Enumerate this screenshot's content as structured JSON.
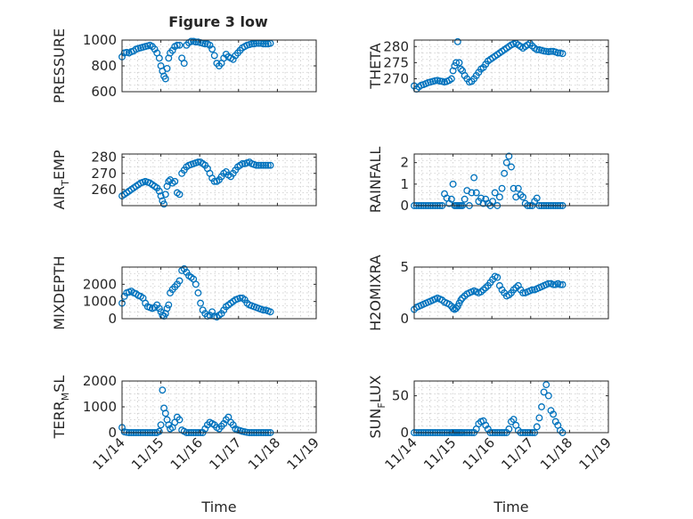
{
  "figure": {
    "title": "Figure 3 low"
  },
  "chart_data": [
    {
      "type": "scatter",
      "ylabel": "PRESSURE",
      "ylim": [
        600,
        1000
      ],
      "yticks": [
        600,
        800,
        1000
      ],
      "xlim": [
        0,
        5
      ],
      "grid": true,
      "color": "#0072BD",
      "x": [
        0.0,
        0.06,
        0.12,
        0.18,
        0.24,
        0.3,
        0.36,
        0.42,
        0.48,
        0.54,
        0.6,
        0.66,
        0.72,
        0.78,
        0.84,
        0.9,
        0.96,
        1.0,
        1.04,
        1.08,
        1.12,
        1.16,
        1.2,
        1.24,
        1.3,
        1.36,
        1.42,
        1.48,
        1.54,
        1.6,
        1.66,
        1.72,
        1.78,
        1.84,
        1.9,
        1.96,
        2.02,
        2.08,
        2.14,
        2.2,
        2.26,
        2.32,
        2.38,
        2.44,
        2.5,
        2.56,
        2.62,
        2.68,
        2.74,
        2.8,
        2.86,
        2.92,
        2.98,
        3.04,
        3.1,
        3.16,
        3.22,
        3.28,
        3.34,
        3.4,
        3.46,
        3.52,
        3.58,
        3.64,
        3.7,
        3.76,
        3.82
      ],
      "y": [
        870,
        900,
        905,
        900,
        910,
        915,
        930,
        935,
        940,
        945,
        950,
        955,
        960,
        950,
        930,
        900,
        860,
        800,
        760,
        720,
        700,
        780,
        860,
        900,
        920,
        950,
        960,
        960,
        860,
        820,
        960,
        980,
        990,
        990,
        985,
        985,
        980,
        975,
        970,
        970,
        960,
        930,
        880,
        820,
        800,
        820,
        860,
        890,
        870,
        860,
        850,
        880,
        900,
        920,
        940,
        950,
        960,
        965,
        970,
        970,
        975,
        975,
        975,
        970,
        970,
        970,
        975
      ]
    },
    {
      "type": "scatter",
      "ylabel": "THETA",
      "ylim": [
        266,
        282
      ],
      "yticks": [
        270,
        275,
        280
      ],
      "xlim": [
        0,
        5
      ],
      "grid": true,
      "color": "#0072BD",
      "x": [
        0.0,
        0.06,
        0.12,
        0.18,
        0.24,
        0.3,
        0.36,
        0.42,
        0.48,
        0.54,
        0.6,
        0.66,
        0.72,
        0.78,
        0.84,
        0.9,
        0.96,
        1.0,
        1.04,
        1.08,
        1.12,
        1.16,
        1.2,
        1.24,
        1.3,
        1.36,
        1.42,
        1.48,
        1.54,
        1.6,
        1.66,
        1.72,
        1.78,
        1.84,
        1.9,
        1.96,
        2.02,
        2.08,
        2.14,
        2.2,
        2.26,
        2.32,
        2.38,
        2.44,
        2.5,
        2.56,
        2.62,
        2.68,
        2.74,
        2.8,
        2.86,
        2.92,
        2.98,
        3.04,
        3.1,
        3.16,
        3.22,
        3.28,
        3.34,
        3.4,
        3.46,
        3.52,
        3.58,
        3.64,
        3.7,
        3.76,
        3.82
      ],
      "y": [
        267.8,
        266.8,
        267.5,
        268.0,
        268.2,
        268.5,
        268.8,
        269.0,
        269.2,
        269.4,
        269.5,
        269.3,
        269.2,
        269.0,
        269.2,
        269.5,
        270.0,
        272.5,
        274.0,
        275.0,
        281.5,
        275.0,
        273.0,
        272.5,
        271.0,
        270.0,
        269.0,
        269.2,
        270.0,
        271.0,
        272.0,
        273.0,
        273.5,
        274.5,
        275.5,
        276.0,
        276.5,
        277.0,
        277.5,
        278.0,
        278.5,
        279.0,
        279.5,
        280.0,
        280.5,
        280.8,
        281.0,
        280.5,
        280.0,
        279.5,
        280.0,
        280.5,
        281.0,
        280.2,
        279.5,
        279.0,
        279.0,
        278.8,
        278.6,
        278.5,
        278.4,
        278.5,
        278.5,
        278.3,
        278.0,
        278.0,
        277.8
      ]
    },
    {
      "type": "scatter",
      "ylabel": "AIR_TEMP",
      "ylim": [
        250,
        282
      ],
      "yticks": [
        260,
        270,
        280
      ],
      "xlim": [
        0,
        5
      ],
      "grid": true,
      "color": "#0072BD",
      "x": [
        0.0,
        0.06,
        0.12,
        0.18,
        0.24,
        0.3,
        0.36,
        0.42,
        0.48,
        0.54,
        0.6,
        0.66,
        0.72,
        0.78,
        0.84,
        0.9,
        0.96,
        1.0,
        1.04,
        1.08,
        1.12,
        1.16,
        1.2,
        1.24,
        1.3,
        1.36,
        1.42,
        1.48,
        1.54,
        1.6,
        1.66,
        1.72,
        1.78,
        1.84,
        1.9,
        1.96,
        2.02,
        2.08,
        2.14,
        2.2,
        2.26,
        2.32,
        2.38,
        2.44,
        2.5,
        2.56,
        2.62,
        2.68,
        2.74,
        2.8,
        2.86,
        2.92,
        2.98,
        3.04,
        3.1,
        3.16,
        3.22,
        3.28,
        3.34,
        3.4,
        3.46,
        3.52,
        3.58,
        3.64,
        3.7,
        3.76,
        3.82
      ],
      "y": [
        256,
        257,
        258,
        259,
        260,
        261,
        262,
        263,
        264,
        264.5,
        265,
        264.5,
        264,
        263,
        262,
        261,
        259,
        256,
        253,
        251,
        257,
        262,
        265,
        266,
        264,
        265,
        258,
        257,
        270,
        272,
        274,
        275,
        275.5,
        276,
        276.5,
        277,
        277,
        276,
        275,
        273,
        270,
        267,
        265,
        265,
        266,
        268,
        270,
        271,
        269,
        268,
        270,
        272,
        274,
        275,
        276,
        276,
        276.5,
        277,
        276,
        275.5,
        275,
        275,
        275,
        275,
        275,
        275,
        275
      ]
    },
    {
      "type": "scatter",
      "ylabel": "RAINFALL",
      "ylim": [
        0,
        2.4
      ],
      "yticks": [
        0,
        1,
        2
      ],
      "xlim": [
        0,
        5
      ],
      "grid": true,
      "color": "#0072BD",
      "x": [
        0.0,
        0.06,
        0.12,
        0.18,
        0.24,
        0.3,
        0.36,
        0.42,
        0.48,
        0.54,
        0.6,
        0.66,
        0.72,
        0.78,
        0.84,
        0.9,
        0.96,
        1.0,
        1.04,
        1.08,
        1.12,
        1.16,
        1.2,
        1.24,
        1.3,
        1.36,
        1.42,
        1.48,
        1.54,
        1.6,
        1.66,
        1.72,
        1.78,
        1.84,
        1.9,
        1.96,
        2.02,
        2.08,
        2.14,
        2.2,
        2.26,
        2.32,
        2.38,
        2.44,
        2.5,
        2.56,
        2.62,
        2.68,
        2.74,
        2.8,
        2.86,
        2.92,
        2.98,
        3.04,
        3.1,
        3.16,
        3.22,
        3.28,
        3.34,
        3.4,
        3.46,
        3.52,
        3.58,
        3.64,
        3.7,
        3.76,
        3.82
      ],
      "y": [
        0,
        0,
        0,
        0,
        0,
        0,
        0,
        0,
        0,
        0,
        0,
        0,
        0,
        0.55,
        0.35,
        0.1,
        0.3,
        1.0,
        0,
        0,
        0,
        0,
        0,
        0,
        0.3,
        0.7,
        0,
        0.6,
        1.3,
        0.6,
        0.2,
        0.35,
        0.1,
        0.3,
        0.1,
        0,
        0.2,
        0.6,
        0,
        0.4,
        0.8,
        1.5,
        2.0,
        2.3,
        1.8,
        0.8,
        0.4,
        0.8,
        0.5,
        0.4,
        0.1,
        0,
        0,
        0,
        0.2,
        0.35,
        0,
        0,
        0,
        0,
        0,
        0,
        0,
        0,
        0,
        0,
        0
      ]
    },
    {
      "type": "scatter",
      "ylabel": "MIXDEPTH",
      "ylim": [
        0,
        3000
      ],
      "yticks": [
        0,
        1000,
        2000
      ],
      "xlim": [
        0,
        5
      ],
      "grid": true,
      "color": "#0072BD",
      "x": [
        0.0,
        0.06,
        0.12,
        0.18,
        0.24,
        0.3,
        0.36,
        0.42,
        0.48,
        0.54,
        0.6,
        0.66,
        0.72,
        0.78,
        0.84,
        0.9,
        0.96,
        1.0,
        1.04,
        1.08,
        1.12,
        1.16,
        1.2,
        1.24,
        1.3,
        1.36,
        1.42,
        1.48,
        1.54,
        1.6,
        1.66,
        1.72,
        1.78,
        1.84,
        1.9,
        1.96,
        2.02,
        2.08,
        2.14,
        2.2,
        2.26,
        2.32,
        2.38,
        2.44,
        2.5,
        2.56,
        2.62,
        2.68,
        2.74,
        2.8,
        2.86,
        2.92,
        2.98,
        3.04,
        3.1,
        3.16,
        3.22,
        3.28,
        3.34,
        3.4,
        3.46,
        3.52,
        3.58,
        3.64,
        3.7,
        3.76,
        3.82
      ],
      "y": [
        900,
        1300,
        1500,
        1550,
        1600,
        1500,
        1450,
        1350,
        1300,
        1200,
        900,
        700,
        650,
        600,
        650,
        800,
        600,
        400,
        200,
        150,
        300,
        600,
        800,
        1500,
        1700,
        1850,
        2000,
        2200,
        2800,
        2900,
        2700,
        2500,
        2400,
        2300,
        2000,
        1500,
        900,
        500,
        300,
        150,
        200,
        400,
        150,
        100,
        200,
        300,
        500,
        700,
        800,
        900,
        1000,
        1100,
        1150,
        1200,
        1200,
        1100,
        900,
        800,
        750,
        700,
        650,
        600,
        550,
        500,
        500,
        450,
        400
      ]
    },
    {
      "type": "scatter",
      "ylabel": "H2OMIXRA",
      "ylim": [
        0,
        5
      ],
      "yticks": [
        0,
        5
      ],
      "xlim": [
        0,
        5
      ],
      "grid": true,
      "color": "#0072BD",
      "x": [
        0.0,
        0.06,
        0.12,
        0.18,
        0.24,
        0.3,
        0.36,
        0.42,
        0.48,
        0.54,
        0.6,
        0.66,
        0.72,
        0.78,
        0.84,
        0.9,
        0.96,
        1.0,
        1.04,
        1.08,
        1.12,
        1.16,
        1.2,
        1.24,
        1.3,
        1.36,
        1.42,
        1.48,
        1.54,
        1.6,
        1.66,
        1.72,
        1.78,
        1.84,
        1.9,
        1.96,
        2.02,
        2.08,
        2.14,
        2.2,
        2.26,
        2.32,
        2.38,
        2.44,
        2.5,
        2.56,
        2.62,
        2.68,
        2.74,
        2.8,
        2.86,
        2.92,
        2.98,
        3.04,
        3.1,
        3.16,
        3.22,
        3.28,
        3.34,
        3.4,
        3.46,
        3.52,
        3.58,
        3.64,
        3.7,
        3.76,
        3.82
      ],
      "y": [
        0.9,
        1.1,
        1.2,
        1.3,
        1.4,
        1.5,
        1.6,
        1.7,
        1.8,
        1.9,
        2.0,
        1.9,
        1.8,
        1.6,
        1.5,
        1.4,
        1.2,
        1.0,
        0.9,
        1.0,
        1.2,
        1.5,
        1.8,
        2.0,
        2.2,
        2.4,
        2.5,
        2.6,
        2.7,
        2.6,
        2.5,
        2.6,
        2.8,
        3.0,
        3.2,
        3.5,
        3.8,
        4.1,
        4.0,
        3.2,
        2.8,
        2.5,
        2.2,
        2.3,
        2.5,
        2.8,
        3.0,
        3.2,
        2.8,
        2.5,
        2.5,
        2.6,
        2.7,
        2.8,
        2.8,
        2.9,
        3.0,
        3.1,
        3.2,
        3.3,
        3.4,
        3.4,
        3.3,
        3.3,
        3.4,
        3.3,
        3.3
      ]
    },
    {
      "type": "scatter",
      "ylabel": "TERR_MSL",
      "ylim": [
        0,
        2000
      ],
      "yticks": [
        0,
        1000,
        2000
      ],
      "xticks": [
        0,
        1,
        2,
        3,
        4,
        5
      ],
      "xticklabels": [
        "11/14",
        "11/15",
        "11/16",
        "11/17",
        "11/18",
        "11/19"
      ],
      "xlim": [
        0,
        5
      ],
      "xlabel": "Time",
      "grid": true,
      "color": "#0072BD",
      "x": [
        0.0,
        0.06,
        0.12,
        0.18,
        0.24,
        0.3,
        0.36,
        0.42,
        0.48,
        0.54,
        0.6,
        0.66,
        0.72,
        0.78,
        0.84,
        0.9,
        0.96,
        1.0,
        1.04,
        1.08,
        1.12,
        1.16,
        1.2,
        1.24,
        1.3,
        1.36,
        1.42,
        1.48,
        1.54,
        1.6,
        1.66,
        1.72,
        1.78,
        1.84,
        1.9,
        1.96,
        2.02,
        2.08,
        2.14,
        2.2,
        2.26,
        2.32,
        2.38,
        2.44,
        2.5,
        2.56,
        2.62,
        2.68,
        2.74,
        2.8,
        2.86,
        2.92,
        2.98,
        3.04,
        3.1,
        3.16,
        3.22,
        3.28,
        3.34,
        3.4,
        3.46,
        3.52,
        3.58,
        3.64,
        3.7,
        3.76,
        3.82
      ],
      "y": [
        200,
        30,
        10,
        0,
        0,
        0,
        0,
        0,
        0,
        0,
        0,
        0,
        0,
        0,
        0,
        0,
        50,
        300,
        1650,
        950,
        750,
        500,
        300,
        150,
        200,
        400,
        600,
        500,
        100,
        50,
        0,
        0,
        0,
        0,
        0,
        0,
        0,
        0,
        150,
        300,
        400,
        350,
        300,
        200,
        150,
        250,
        350,
        500,
        600,
        400,
        300,
        150,
        100,
        80,
        50,
        30,
        10,
        0,
        0,
        0,
        0,
        0,
        0,
        0,
        0,
        0,
        0
      ]
    },
    {
      "type": "scatter",
      "ylabel": "SUN_FLUX",
      "ylim": [
        0,
        70
      ],
      "yticks": [
        0,
        50
      ],
      "xticks": [
        0,
        1,
        2,
        3,
        4,
        5
      ],
      "xticklabels": [
        "11/14",
        "11/15",
        "11/16",
        "11/17",
        "11/18",
        "11/19"
      ],
      "xlim": [
        0,
        5
      ],
      "xlabel": "Time",
      "grid": true,
      "color": "#0072BD",
      "x": [
        0.0,
        0.06,
        0.12,
        0.18,
        0.24,
        0.3,
        0.36,
        0.42,
        0.48,
        0.54,
        0.6,
        0.66,
        0.72,
        0.78,
        0.84,
        0.9,
        0.96,
        1.0,
        1.04,
        1.08,
        1.12,
        1.16,
        1.2,
        1.24,
        1.3,
        1.36,
        1.42,
        1.48,
        1.54,
        1.6,
        1.66,
        1.72,
        1.78,
        1.84,
        1.9,
        1.96,
        2.02,
        2.08,
        2.14,
        2.2,
        2.26,
        2.32,
        2.38,
        2.44,
        2.5,
        2.56,
        2.62,
        2.68,
        2.74,
        2.8,
        2.86,
        2.92,
        2.98,
        3.04,
        3.1,
        3.16,
        3.22,
        3.28,
        3.34,
        3.4,
        3.46,
        3.52,
        3.58,
        3.64,
        3.7,
        3.76,
        3.82
      ],
      "y": [
        0,
        0,
        0,
        0,
        0,
        0,
        0,
        0,
        0,
        0,
        0,
        0,
        0,
        0,
        0,
        0,
        0,
        0,
        0,
        0,
        0,
        0,
        0,
        0,
        0,
        0,
        0,
        0,
        0,
        5,
        12,
        15,
        16,
        10,
        5,
        0,
        0,
        0,
        0,
        0,
        0,
        0,
        0,
        5,
        15,
        18,
        10,
        3,
        0,
        0,
        0,
        0,
        0,
        0,
        0,
        8,
        20,
        35,
        55,
        65,
        50,
        30,
        25,
        15,
        10,
        3,
        0
      ]
    }
  ]
}
